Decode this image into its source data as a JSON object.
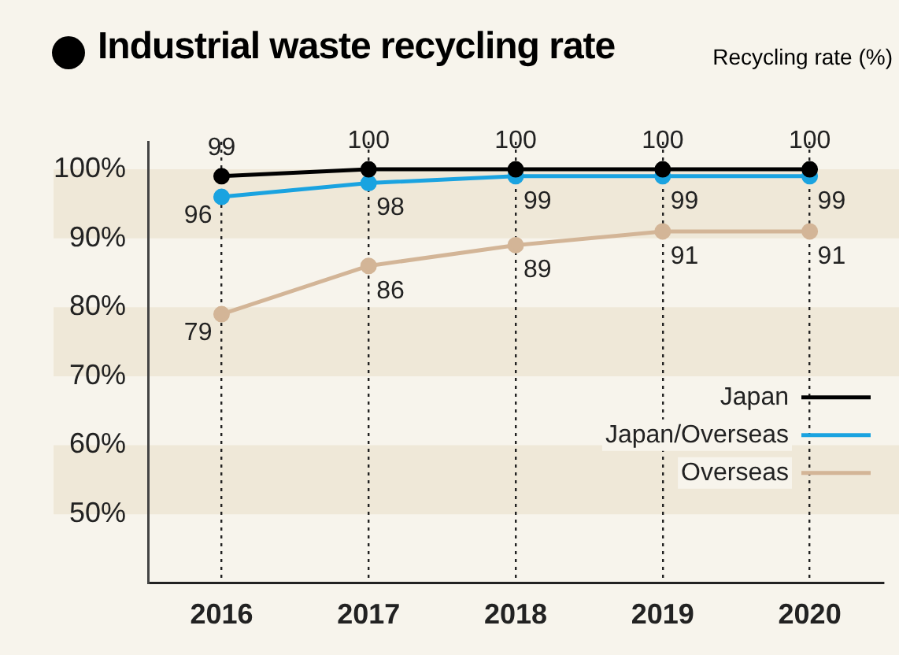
{
  "chart_data": {
    "type": "line",
    "title": "Industrial waste recycling rate",
    "ylabel": "Recycling rate (%)",
    "categories": [
      "2016",
      "2017",
      "2018",
      "2019",
      "2020"
    ],
    "series": [
      {
        "name": "Japan",
        "color": "#000000",
        "values": [
          99,
          100,
          100,
          100,
          100
        ]
      },
      {
        "name": "Japan/Overseas",
        "color": "#1aa3e0",
        "values": [
          96,
          98,
          99,
          99,
          99
        ]
      },
      {
        "name": "Overseas",
        "color": "#d3b597",
        "values": [
          79,
          86,
          89,
          91,
          91
        ]
      }
    ],
    "ylim": [
      40,
      104
    ],
    "yticks": [
      {
        "value": 50,
        "label": "50%"
      },
      {
        "value": 60,
        "label": "60%"
      },
      {
        "value": 70,
        "label": "70%"
      },
      {
        "value": 80,
        "label": "80%"
      },
      {
        "value": 90,
        "label": "90%"
      },
      {
        "value": 100,
        "label": "100%"
      }
    ],
    "grid": "x",
    "legend": "bottom right",
    "marker": "circle",
    "line_style": "solid",
    "data_labels": true
  }
}
